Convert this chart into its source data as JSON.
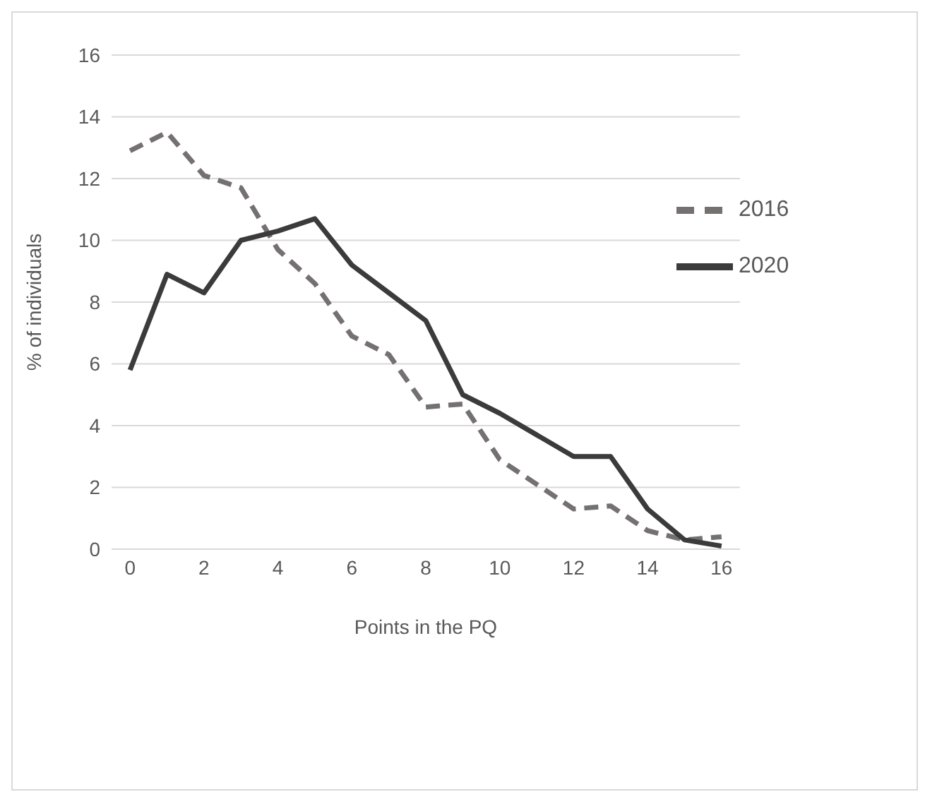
{
  "chart_data": {
    "type": "line",
    "xlabel": "Points in the PQ",
    "ylabel": "% of individuals",
    "x": [
      0,
      1,
      2,
      3,
      4,
      5,
      6,
      7,
      8,
      9,
      10,
      11,
      12,
      13,
      14,
      15,
      16
    ],
    "xlim": [
      -0.5,
      16.5
    ],
    "xticks": [
      0,
      2,
      4,
      6,
      8,
      10,
      12,
      14,
      16
    ],
    "ylim": [
      0,
      16
    ],
    "yticks": [
      0,
      2,
      4,
      6,
      8,
      10,
      12,
      14,
      16
    ],
    "grid": "y",
    "legend": "top right",
    "marker": "none",
    "series": [
      {
        "name": "2016",
        "color": "#767171",
        "line_style": "dashed",
        "values": [
          12.9,
          13.5,
          12.1,
          11.7,
          9.7,
          8.6,
          6.9,
          6.3,
          4.6,
          4.7,
          2.9,
          2.1,
          1.3,
          1.4,
          0.6,
          0.3,
          0.4
        ]
      },
      {
        "name": "2020",
        "color": "#3b3b3b",
        "line_style": "solid",
        "values": [
          5.8,
          8.9,
          8.3,
          10.0,
          10.3,
          10.7,
          9.2,
          8.3,
          7.4,
          5.0,
          4.4,
          3.7,
          3.0,
          3.0,
          1.3,
          0.3,
          0.1
        ]
      }
    ]
  }
}
